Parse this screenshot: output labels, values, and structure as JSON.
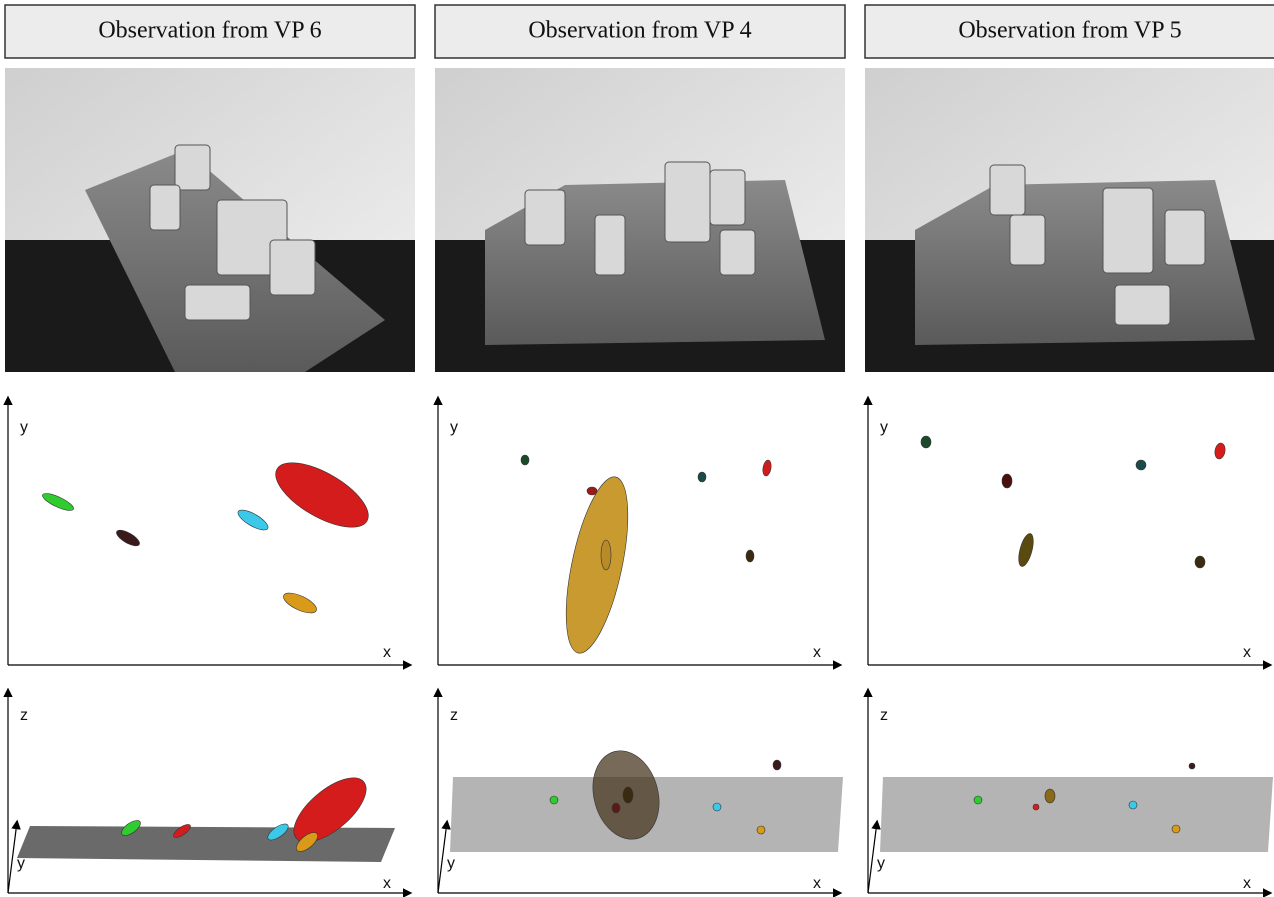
{
  "columns": [
    {
      "title": "Observation from VP 6",
      "xy_plot": {
        "x_label": "x",
        "y_label": "y"
      },
      "xz_plot": {
        "x_label": "x",
        "z_label": "z",
        "y_label": "y"
      }
    },
    {
      "title": "Observation from VP 4",
      "xy_plot": {
        "x_label": "x",
        "y_label": "y"
      },
      "xz_plot": {
        "x_label": "x",
        "z_label": "z",
        "y_label": "y"
      }
    },
    {
      "title": "Observation from VP 5",
      "xy_plot": {
        "x_label": "x",
        "y_label": "y"
      },
      "xz_plot": {
        "x_label": "x",
        "z_label": "z",
        "y_label": "y"
      }
    }
  ]
}
